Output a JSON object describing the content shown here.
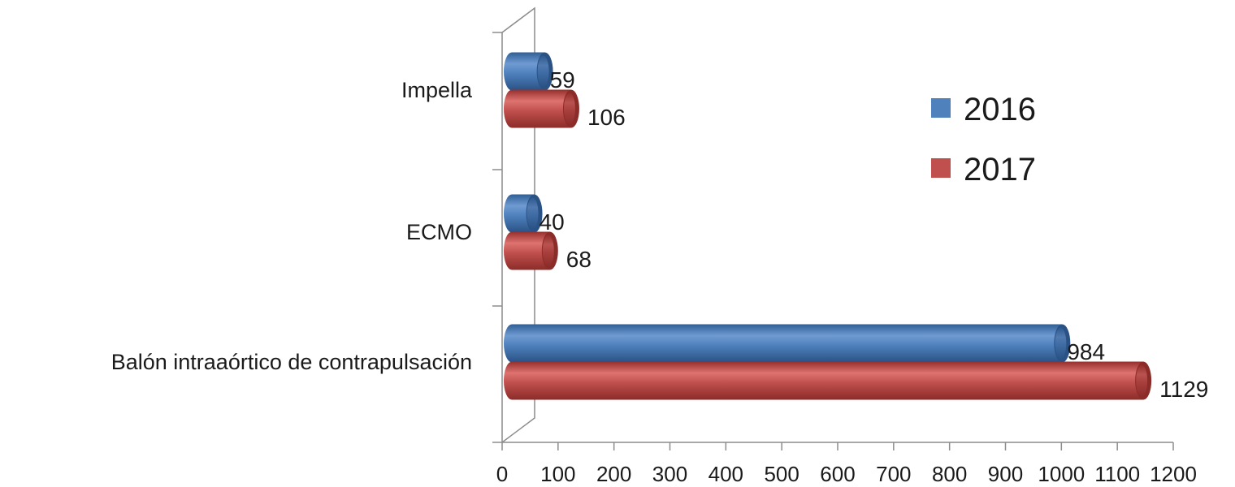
{
  "chart_data": {
    "type": "bar",
    "orientation": "horizontal",
    "style": "3d-cylinder",
    "categories": [
      "Impella",
      "ECMO",
      "Balón intraaórtico de contrapulsación"
    ],
    "series": [
      {
        "name": "2016",
        "values": [
          59,
          40,
          984
        ],
        "color": "#4f81bd"
      },
      {
        "name": "2017",
        "values": [
          106,
          68,
          1129
        ],
        "color": "#c0504d"
      }
    ],
    "x_ticks": [
      0,
      100,
      200,
      300,
      400,
      500,
      600,
      700,
      800,
      900,
      1000,
      1100,
      1200
    ],
    "xlim": [
      0,
      1200
    ],
    "title": "",
    "xlabel": "",
    "ylabel": "",
    "legend": "right",
    "grid": false
  }
}
